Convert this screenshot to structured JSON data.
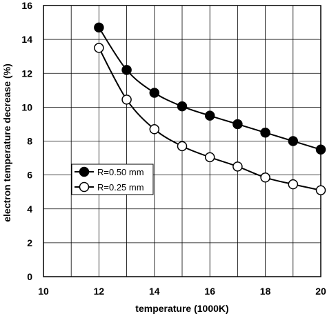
{
  "chart_data": {
    "type": "line",
    "title": "",
    "xlabel": "temperature (1000K)",
    "ylabel": "electron temperature decrease (%)",
    "xlim": [
      10,
      20
    ],
    "ylim": [
      0,
      16
    ],
    "x_ticks": [
      "10",
      "12",
      "14",
      "16",
      "18",
      "20"
    ],
    "y_ticks": [
      "0",
      "2",
      "4",
      "6",
      "8",
      "10",
      "12",
      "14",
      "16"
    ],
    "grid": true,
    "legend_position": "middle-left",
    "x": [
      12,
      13,
      14,
      15,
      16,
      17,
      18,
      19,
      20
    ],
    "series": [
      {
        "name": "R=0.50 mm",
        "marker": "filled-circle",
        "color": "#000000",
        "values": [
          14.7,
          12.2,
          10.85,
          10.05,
          9.5,
          9.0,
          8.5,
          8.0,
          7.5
        ]
      },
      {
        "name": "R=0.25 mm",
        "marker": "open-circle",
        "color": "#000000",
        "values": [
          13.5,
          10.45,
          8.7,
          7.7,
          7.05,
          6.5,
          5.85,
          5.45,
          5.1
        ]
      }
    ]
  }
}
